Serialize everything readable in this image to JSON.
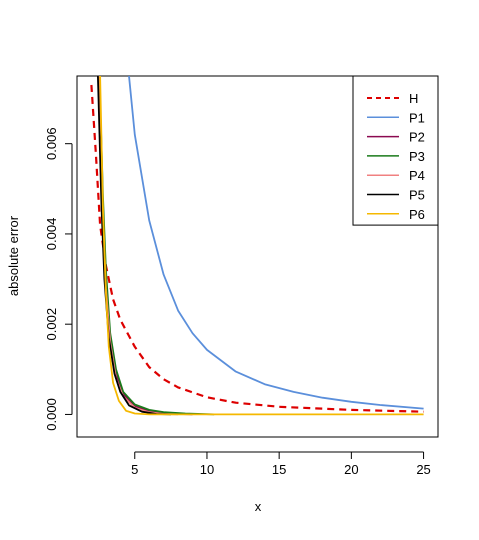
{
  "chart_data": {
    "type": "line",
    "title": "",
    "xlabel": "x",
    "ylabel": "absolute error",
    "xlim": [
      1,
      26
    ],
    "ylim": [
      -0.0005,
      0.0075
    ],
    "x_ticks": [
      5,
      10,
      15,
      20,
      25
    ],
    "x_tick_labels": [
      "5",
      "10",
      "15",
      "20",
      "25"
    ],
    "y_ticks": [
      0.0,
      0.002,
      0.004,
      0.006
    ],
    "y_tick_labels": [
      "0.000",
      "0.002",
      "0.004",
      "0.006"
    ],
    "grid": false,
    "legend_position": "top-right",
    "series": [
      {
        "name": "H",
        "color": "#dd0000",
        "dash": true,
        "points": [
          [
            2.0,
            0.0073
          ],
          [
            2.3,
            0.0058
          ],
          [
            2.6,
            0.0042
          ],
          [
            3.0,
            0.0033
          ],
          [
            3.5,
            0.00255
          ],
          [
            4.0,
            0.0021
          ],
          [
            5.0,
            0.0015
          ],
          [
            6.0,
            0.00105
          ],
          [
            7.0,
            0.00078
          ],
          [
            8.0,
            0.0006
          ],
          [
            10.0,
            0.00038
          ],
          [
            12.0,
            0.00026
          ],
          [
            15.0,
            0.00017
          ],
          [
            20.0,
            0.0001
          ],
          [
            25.0,
            6e-05
          ]
        ]
      },
      {
        "name": "P1",
        "color": "#5b8fdb",
        "dash": false,
        "points": [
          [
            4.6,
            0.0075
          ],
          [
            5.0,
            0.0062
          ],
          [
            6.0,
            0.0043
          ],
          [
            7.0,
            0.0031
          ],
          [
            8.0,
            0.0023
          ],
          [
            9.0,
            0.0018
          ],
          [
            10.0,
            0.00143
          ],
          [
            12.0,
            0.00095
          ],
          [
            14.0,
            0.00067
          ],
          [
            16.0,
            0.0005
          ],
          [
            18.0,
            0.00037
          ],
          [
            20.0,
            0.00028
          ],
          [
            22.0,
            0.00021
          ],
          [
            25.0,
            0.00013
          ]
        ]
      },
      {
        "name": "P2",
        "color": "#8b0a50",
        "dash": false,
        "points": [
          [
            2.5,
            0.0075
          ],
          [
            2.8,
            0.0045
          ],
          [
            3.0,
            0.003
          ],
          [
            3.3,
            0.0017
          ],
          [
            3.7,
            0.0009
          ],
          [
            4.2,
            0.00045
          ],
          [
            5.0,
            0.00018
          ],
          [
            6.0,
            7e-05
          ],
          [
            7.0,
            3e-05
          ],
          [
            8.0,
            1e-05
          ],
          [
            9.0,
            0.0
          ]
        ]
      },
      {
        "name": "P3",
        "color": "#1a7a1a",
        "dash": false,
        "points": [
          [
            2.55,
            0.0075
          ],
          [
            2.8,
            0.0048
          ],
          [
            3.0,
            0.0032
          ],
          [
            3.3,
            0.0018
          ],
          [
            3.7,
            0.001
          ],
          [
            4.2,
            0.0005
          ],
          [
            5.0,
            0.00022
          ],
          [
            6.0,
            0.0001
          ],
          [
            7.0,
            5e-05
          ],
          [
            8.5,
            2e-05
          ],
          [
            10.5,
            0.0
          ]
        ]
      },
      {
        "name": "P4",
        "color": "#f08080",
        "dash": false,
        "points": [
          [
            2.5,
            0.0075
          ],
          [
            2.8,
            0.0043
          ],
          [
            3.0,
            0.0028
          ],
          [
            3.3,
            0.0016
          ],
          [
            3.7,
            0.0008
          ],
          [
            4.2,
            0.0004
          ],
          [
            5.0,
            0.00015
          ],
          [
            6.0,
            5e-05
          ],
          [
            7.0,
            1e-05
          ],
          [
            8.0,
            0.0
          ]
        ]
      },
      {
        "name": "P5",
        "color": "#000000",
        "dash": false,
        "points": [
          [
            2.45,
            0.0075
          ],
          [
            2.7,
            0.0046
          ],
          [
            2.9,
            0.003
          ],
          [
            3.2,
            0.0017
          ],
          [
            3.6,
            0.0009
          ],
          [
            4.0,
            0.0005
          ],
          [
            4.6,
            0.0002
          ],
          [
            5.5,
            6e-05
          ],
          [
            6.5,
            1e-05
          ],
          [
            7.5,
            0.0
          ]
        ]
      },
      {
        "name": "P6",
        "color": "#f5b800",
        "dash": false,
        "points": [
          [
            2.6,
            0.0075
          ],
          [
            2.8,
            0.0045
          ],
          [
            3.0,
            0.0027
          ],
          [
            3.2,
            0.0015
          ],
          [
            3.5,
            0.0007
          ],
          [
            3.9,
            0.0003
          ],
          [
            4.4,
            8e-05
          ],
          [
            5.0,
            2e-05
          ],
          [
            6.0,
            0.0
          ],
          [
            25.0,
            0.0
          ]
        ]
      }
    ]
  }
}
